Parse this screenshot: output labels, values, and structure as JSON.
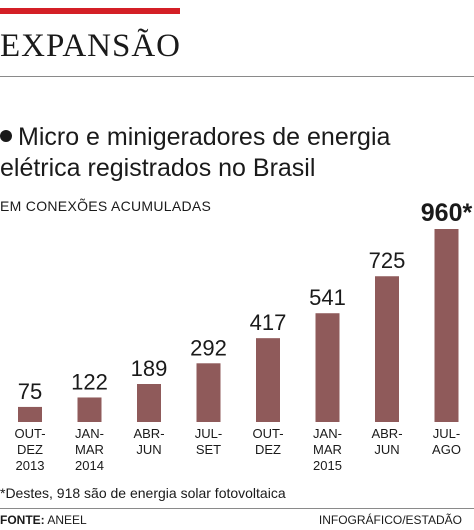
{
  "header": {
    "headline": "EXPANSÃO"
  },
  "colors": {
    "accent": "#d41f26",
    "bar": "#8f5a5a",
    "text": "#1a1a1a"
  },
  "chart_data": {
    "type": "bar",
    "title_lines": [
      "Micro e minigeradores de energia",
      "elétrica registrados no Brasil"
    ],
    "unit": "EM CONEXÕES ACUMULADAS",
    "categories": [
      [
        "OUT-",
        "DEZ",
        "2013"
      ],
      [
        "JAN-",
        "MAR",
        "2014"
      ],
      [
        "ABR-",
        "JUN"
      ],
      [
        "JUL-",
        "SET"
      ],
      [
        "OUT-",
        "DEZ"
      ],
      [
        "JAN-",
        "MAR",
        "2015"
      ],
      [
        "ABR-",
        "JUN"
      ],
      [
        "JUL-",
        "AGO"
      ]
    ],
    "values": [
      75,
      122,
      189,
      292,
      417,
      541,
      725,
      960
    ],
    "value_labels": [
      "75",
      "122",
      "189",
      "292",
      "417",
      "541",
      "725",
      "960*"
    ],
    "highlight_index": 7,
    "ylim": [
      0,
      960
    ],
    "grid": false,
    "legend": "none"
  },
  "footer": {
    "footnote": "*Destes, 918 são de energia solar fotovoltaica",
    "source_label": "FONTE:",
    "source_value": "ANEEL",
    "credit": "INFOGRÁFICO/ESTADÃO"
  }
}
